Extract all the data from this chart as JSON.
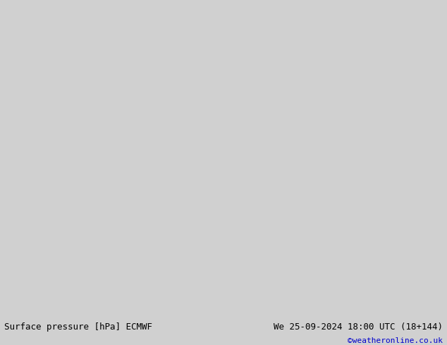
{
  "title_left": "Surface pressure [hPa] ECMWF",
  "title_right": "We 25-09-2024 18:00 UTC (18+144)",
  "watermark": "©weatheronline.co.uk",
  "watermark_color": "#0000cc",
  "bg_color": "#e8e8e8",
  "land_color": "#aaddaa",
  "ocean_color": "#e0e8f8",
  "border_color": "#888888",
  "isobar_black_color": "#000000",
  "isobar_red_color": "#cc0000",
  "isobar_blue_color": "#0000cc",
  "label_fontsize": 8,
  "footer_fontsize": 9,
  "figsize": [
    6.34,
    4.9
  ],
  "dpi": 100
}
